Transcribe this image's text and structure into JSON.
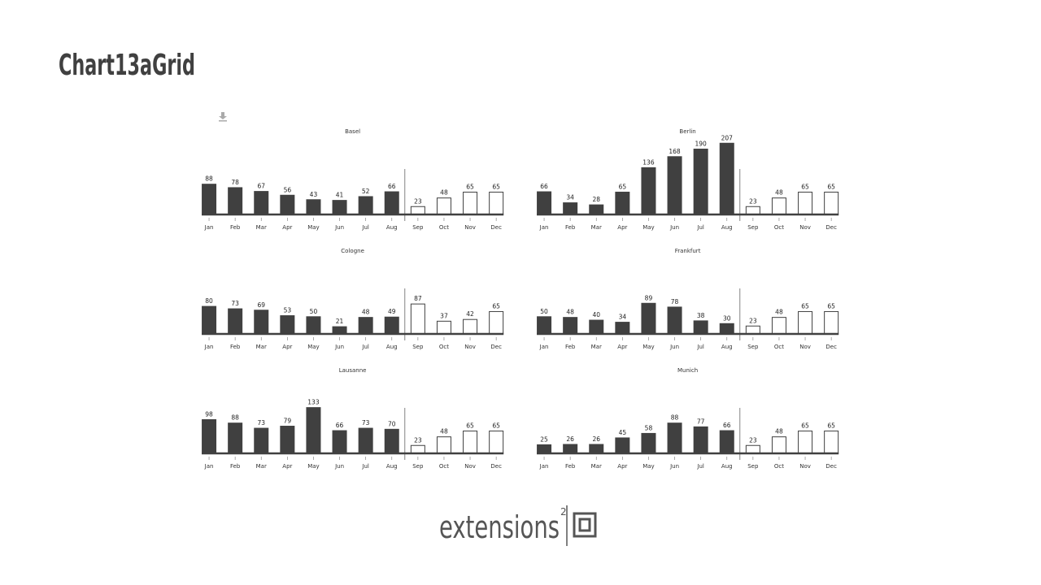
{
  "page_title": "Chart13aGrid",
  "logo": {
    "text": "extensions",
    "superscript": "2"
  },
  "chart_data": [
    {
      "type": "bar",
      "title": "Basel",
      "categories": [
        "Jan",
        "Feb",
        "Mar",
        "Apr",
        "May",
        "Jun",
        "Jul",
        "Aug",
        "Sep",
        "Oct",
        "Nov",
        "Dec"
      ],
      "series": [
        {
          "color": "#404040",
          "values": [
            88,
            78,
            67,
            56,
            43,
            41,
            52,
            66,
            null,
            null,
            null,
            null
          ]
        },
        {
          "color": "#ffffff",
          "values": [
            null,
            null,
            null,
            null,
            null,
            null,
            null,
            null,
            23,
            48,
            65,
            65
          ]
        }
      ],
      "ylim": [
        0,
        210
      ]
    },
    {
      "type": "bar",
      "title": "Berlin",
      "categories": [
        "Jan",
        "Feb",
        "Mar",
        "Apr",
        "May",
        "Jun",
        "Jul",
        "Aug",
        "Sep",
        "Oct",
        "Nov",
        "Dec"
      ],
      "series": [
        {
          "color": "#404040",
          "values": [
            66,
            34,
            28,
            65,
            136,
            168,
            190,
            207,
            null,
            null,
            null,
            null
          ]
        },
        {
          "color": "#ffffff",
          "values": [
            null,
            null,
            null,
            null,
            null,
            null,
            null,
            null,
            23,
            48,
            65,
            65
          ]
        }
      ],
      "ylim": [
        0,
        210
      ]
    },
    {
      "type": "bar",
      "title": "Cologne",
      "categories": [
        "Jan",
        "Feb",
        "Mar",
        "Apr",
        "May",
        "Jun",
        "Jul",
        "Aug",
        "Sep",
        "Oct",
        "Nov",
        "Dec"
      ],
      "series": [
        {
          "color": "#404040",
          "values": [
            80,
            73,
            69,
            53,
            50,
            21,
            48,
            49,
            null,
            null,
            null,
            null
          ]
        },
        {
          "color": "#ffffff",
          "values": [
            null,
            null,
            null,
            null,
            null,
            null,
            null,
            null,
            87,
            37,
            42,
            65
          ]
        }
      ],
      "ylim": [
        0,
        210
      ]
    },
    {
      "type": "bar",
      "title": "Frankfurt",
      "categories": [
        "Jan",
        "Feb",
        "Mar",
        "Apr",
        "May",
        "Jun",
        "Jul",
        "Aug",
        "Sep",
        "Oct",
        "Nov",
        "Dec"
      ],
      "series": [
        {
          "color": "#404040",
          "values": [
            50,
            48,
            40,
            34,
            89,
            78,
            38,
            30,
            null,
            null,
            null,
            null
          ]
        },
        {
          "color": "#ffffff",
          "values": [
            null,
            null,
            null,
            null,
            null,
            null,
            null,
            null,
            23,
            48,
            65,
            65
          ]
        }
      ],
      "ylim": [
        0,
        210
      ]
    },
    {
      "type": "bar",
      "title": "Lausanne",
      "categories": [
        "Jan",
        "Feb",
        "Mar",
        "Apr",
        "May",
        "Jun",
        "Jul",
        "Aug",
        "Sep",
        "Oct",
        "Nov",
        "Dec"
      ],
      "series": [
        {
          "color": "#404040",
          "values": [
            98,
            88,
            73,
            79,
            133,
            66,
            73,
            70,
            null,
            null,
            null,
            null
          ]
        },
        {
          "color": "#ffffff",
          "values": [
            null,
            null,
            null,
            null,
            null,
            null,
            null,
            null,
            23,
            48,
            65,
            65
          ]
        }
      ],
      "ylim": [
        0,
        210
      ]
    },
    {
      "type": "bar",
      "title": "Munich",
      "categories": [
        "Jan",
        "Feb",
        "Mar",
        "Apr",
        "May",
        "Jun",
        "Jul",
        "Aug",
        "Sep",
        "Oct",
        "Nov",
        "Dec"
      ],
      "series": [
        {
          "color": "#404040",
          "values": [
            25,
            26,
            26,
            45,
            58,
            88,
            77,
            66,
            null,
            null,
            null,
            null
          ]
        },
        {
          "color": "#ffffff",
          "values": [
            null,
            null,
            null,
            null,
            null,
            null,
            null,
            null,
            23,
            48,
            65,
            65
          ]
        }
      ],
      "ylim": [
        0,
        210
      ]
    }
  ]
}
